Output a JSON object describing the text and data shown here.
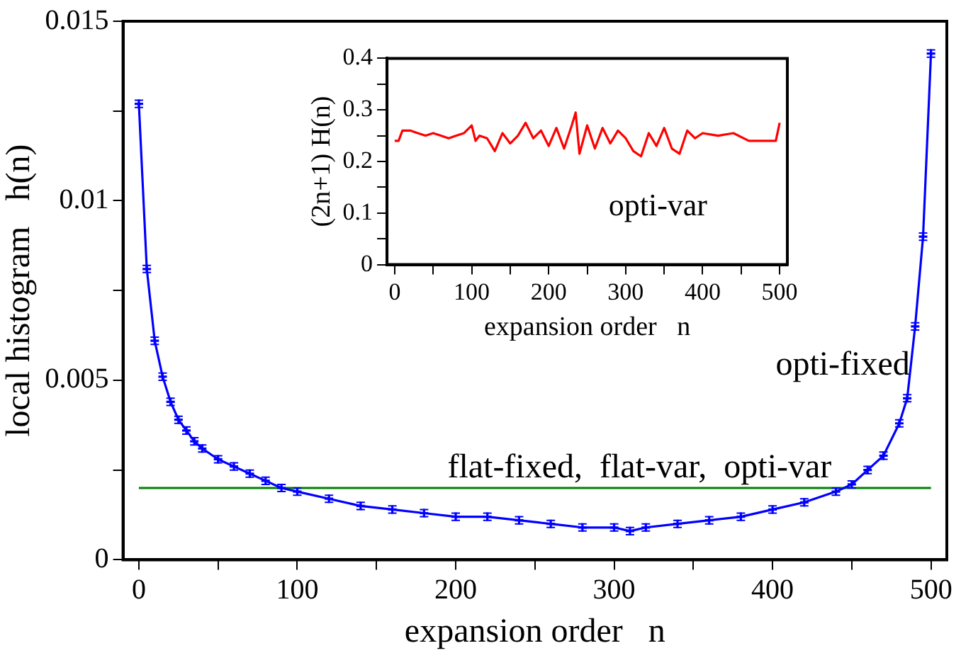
{
  "chart_data": [
    {
      "type": "line",
      "xlabel": "expansion order   n",
      "ylabel": "local histogram   h(n)",
      "xlim": [
        -10,
        510
      ],
      "ylim": [
        0,
        0.015
      ],
      "xticks": [
        0,
        {
          "value": 50,
          "label": null
        },
        100,
        {
          "value": 150,
          "label": null
        },
        200,
        {
          "value": 250,
          "label": null
        },
        300,
        {
          "value": 350,
          "label": null
        },
        400,
        {
          "value": 450,
          "label": null
        },
        500
      ],
      "yticks": [
        0,
        {
          "value": 0.0025,
          "label": null
        },
        0.005,
        {
          "value": 0.0075,
          "label": null
        },
        0.01,
        {
          "value": 0.0125,
          "label": null
        },
        0.015
      ],
      "legend": false,
      "line_style": "solid",
      "series": [
        {
          "name": "opti-fixed",
          "color": "#0000ff",
          "marker": "cross",
          "x": [
            0,
            5,
            10,
            15,
            20,
            25,
            30,
            35,
            40,
            50,
            60,
            70,
            80,
            90,
            100,
            120,
            140,
            160,
            180,
            200,
            220,
            240,
            260,
            280,
            300,
            310,
            320,
            340,
            360,
            380,
            400,
            420,
            440,
            450,
            460,
            470,
            480,
            485,
            490,
            495,
            500
          ],
          "values": [
            0.0127,
            0.0081,
            0.0061,
            0.0051,
            0.0044,
            0.0039,
            0.0036,
            0.0033,
            0.0031,
            0.0028,
            0.0026,
            0.0024,
            0.0022,
            0.002,
            0.0019,
            0.0017,
            0.0015,
            0.0014,
            0.0013,
            0.0012,
            0.0012,
            0.0011,
            0.001,
            0.0009,
            0.0009,
            0.0008,
            0.0009,
            0.001,
            0.0011,
            0.0012,
            0.0014,
            0.0016,
            0.0019,
            0.0021,
            0.0025,
            0.0029,
            0.0038,
            0.0045,
            0.0065,
            0.009,
            0.0141
          ],
          "errors": [
            0.0001,
            0.0001,
            0.0001,
            0.0001,
            0.0001,
            0.0001,
            0.0001,
            0.0001,
            0.0001,
            0.0001,
            0.0001,
            0.0001,
            0.0001,
            0.0001,
            0.0001,
            0.0001,
            0.0001,
            0.0001,
            0.0001,
            0.0001,
            0.0001,
            0.0001,
            0.0001,
            0.0001,
            0.0001,
            0.0001,
            0.0001,
            0.0001,
            0.0001,
            0.0001,
            0.0001,
            0.0001,
            0.0001,
            0.0001,
            0.0001,
            0.0001,
            0.0001,
            0.0001,
            0.0001,
            0.0001,
            0.0001
          ]
        },
        {
          "name": "flat-fixed,  flat-var,  opti-var",
          "color": "#008000",
          "x": [
            0,
            100,
            200,
            300,
            400,
            500
          ],
          "values": [
            0.002,
            0.002,
            0.002,
            0.002,
            0.002,
            0.002
          ]
        }
      ]
    },
    {
      "type": "line",
      "xlabel": "expansion order   n",
      "ylabel": "(2n+1) H(n)",
      "xlim": [
        -10,
        510
      ],
      "ylim": [
        0,
        0.4
      ],
      "xticks": [
        0,
        {
          "value": 50,
          "label": null
        },
        100,
        {
          "value": 150,
          "label": null
        },
        200,
        {
          "value": 250,
          "label": null
        },
        300,
        {
          "value": 350,
          "label": null
        },
        400,
        {
          "value": 450,
          "label": null
        },
        500
      ],
      "yticks": [
        0,
        {
          "value": 0.05,
          "label": null
        },
        0.1,
        {
          "value": 0.15,
          "label": null
        },
        0.2,
        {
          "value": 0.25,
          "label": null
        },
        0.3,
        {
          "value": 0.35,
          "label": null
        },
        0.4
      ],
      "legend": false,
      "line_style": "solid",
      "series": [
        {
          "name": "opti-var",
          "color": "#ff0000",
          "x": [
            0,
            5,
            10,
            20,
            30,
            40,
            50,
            60,
            70,
            80,
            90,
            100,
            105,
            110,
            120,
            130,
            140,
            150,
            160,
            170,
            180,
            190,
            200,
            210,
            220,
            230,
            235,
            240,
            250,
            260,
            270,
            280,
            290,
            300,
            310,
            320,
            330,
            340,
            350,
            360,
            370,
            380,
            390,
            400,
            420,
            440,
            460,
            480,
            495,
            500
          ],
          "values": [
            0.24,
            0.24,
            0.26,
            0.26,
            0.255,
            0.25,
            0.255,
            0.25,
            0.245,
            0.25,
            0.255,
            0.27,
            0.24,
            0.25,
            0.245,
            0.22,
            0.255,
            0.235,
            0.25,
            0.275,
            0.245,
            0.26,
            0.23,
            0.265,
            0.225,
            0.27,
            0.295,
            0.215,
            0.27,
            0.225,
            0.265,
            0.235,
            0.26,
            0.245,
            0.22,
            0.21,
            0.255,
            0.23,
            0.265,
            0.225,
            0.215,
            0.26,
            0.245,
            0.255,
            0.25,
            0.255,
            0.24,
            0.24,
            0.24,
            0.275
          ]
        }
      ]
    }
  ]
}
